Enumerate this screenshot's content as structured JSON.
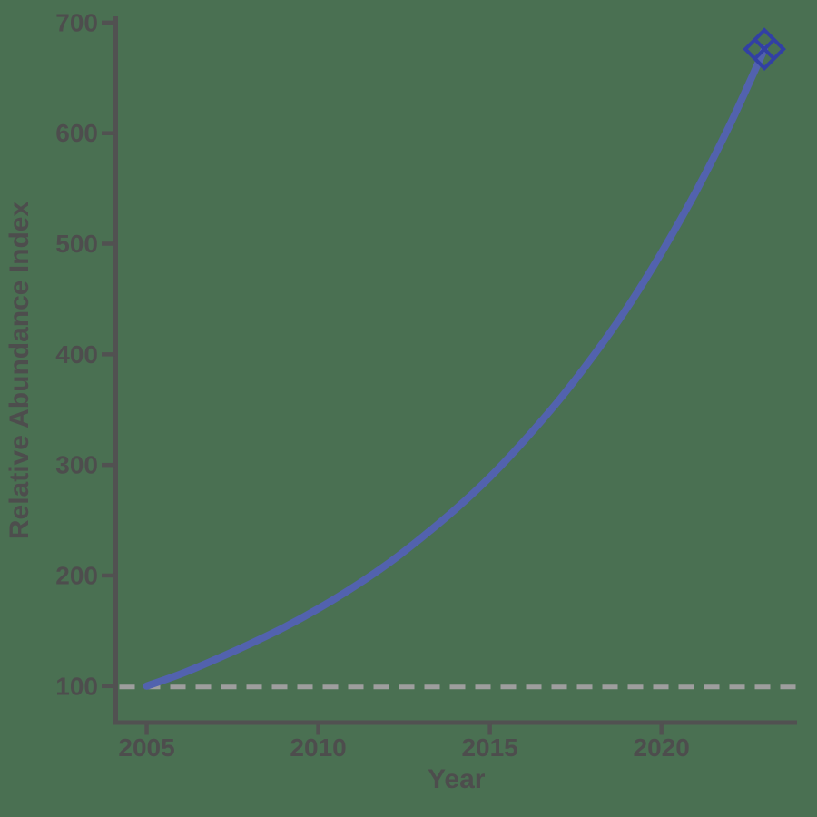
{
  "figure": {
    "background_color": "#4A7052",
    "axis_color": "#515151",
    "text_color": "#4D4D4D"
  },
  "chart_data": {
    "type": "line",
    "title": "",
    "xlabel": "Year",
    "ylabel": "Relative Abundance Index",
    "x": [
      2005,
      2006,
      2007,
      2008,
      2009,
      2010,
      2011,
      2012,
      2013,
      2014,
      2015,
      2016,
      2017,
      2018,
      2019,
      2020,
      2021,
      2022,
      2023
    ],
    "series": [
      {
        "name": "Relative Abundance Index",
        "color": "#5262AE",
        "line_width": 8,
        "values": [
          100,
          111,
          124,
          138,
          153,
          170,
          189,
          210,
          234,
          260,
          289,
          322,
          358,
          398,
          442,
          492,
          547,
          608,
          676
        ]
      }
    ],
    "xticks": [
      2005,
      2010,
      2015,
      2020
    ],
    "yticks": [
      100,
      200,
      300,
      400,
      500,
      600,
      700
    ],
    "xlim": [
      2004.1,
      2023.95
    ],
    "ylim": [
      67,
      704
    ],
    "grid": false,
    "legend": "none",
    "reference_line": {
      "value": 100,
      "color": "#9E9E9E",
      "style": "dashed"
    },
    "end_marker": {
      "shape": "diamond-x-open",
      "x": 2023,
      "y": 676,
      "color": "#3240A4",
      "size": 42
    }
  }
}
